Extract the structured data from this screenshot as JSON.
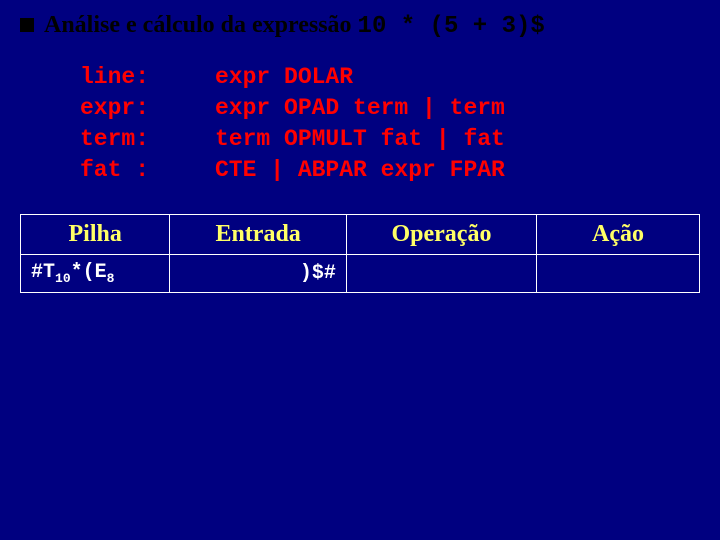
{
  "title": {
    "prefix": "Análise e cálculo da expressão ",
    "code": "10 * (5 + 3)$"
  },
  "grammar": [
    {
      "lhs": "line:",
      "rhs": "expr DOLAR"
    },
    {
      "lhs": "expr:",
      "rhs": "expr OPAD term | term"
    },
    {
      "lhs": "term:",
      "rhs": "term OPMULT fat | fat"
    },
    {
      "lhs": "fat :",
      "rhs": "CTE | ABPAR expr FPAR"
    }
  ],
  "table": {
    "headers": [
      "Pilha",
      "Entrada",
      "Operação",
      "Ação"
    ],
    "rows": [
      {
        "pilha_parts": [
          "#T",
          "10",
          "*(E",
          "8"
        ],
        "entrada": ")$#",
        "operacao": "",
        "acao": ""
      }
    ]
  },
  "colors": {
    "background": "#000080",
    "title": "#000000",
    "grammar": "#ff0000",
    "header": "#ffff66",
    "body": "#ffffff",
    "border": "#ffffff"
  }
}
